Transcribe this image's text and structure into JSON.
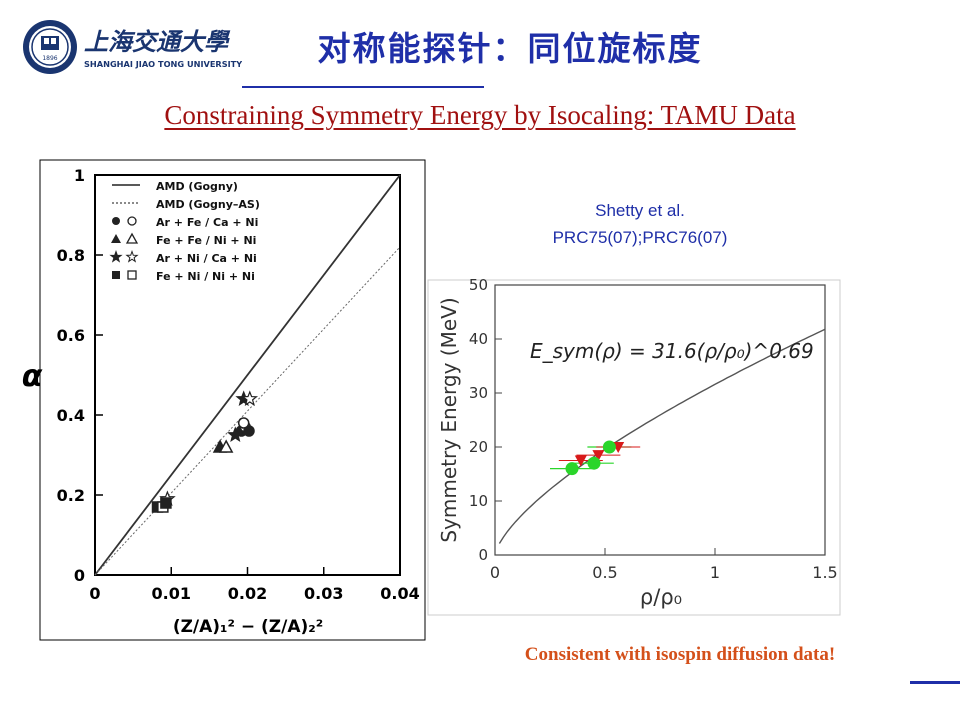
{
  "header": {
    "logo_chinese": "上海交通大學",
    "logo_english": "SHANGHAI JIAO TONG UNIVERSITY",
    "seal_year": "1896",
    "title": "对称能探针：同位旋标度"
  },
  "subtitle": "Constraining Symmetry Energy by Isocaling: TAMU Data",
  "citation": {
    "line1": "Shetty et al.",
    "line2": "PRC75(07);PRC76(07)"
  },
  "note": "Consistent with isospin diffusion data!",
  "chart_data": [
    {
      "type": "scatter",
      "xlabel": "(Z/A)₁² − (Z/A)₂²",
      "ylabel": "α",
      "xlim": [
        0,
        0.04
      ],
      "ylim": [
        0,
        1
      ],
      "xticks": [
        "0",
        "0.01",
        "0.02",
        "0.03",
        "0.04"
      ],
      "yticks": [
        "0",
        "0.2",
        "0.4",
        "0.6",
        "0.8",
        "1"
      ],
      "legend": [
        {
          "label": "AMD (Gogny)",
          "style": "solid-line"
        },
        {
          "label": "AMD (Gogny–AS)",
          "style": "dotted-line"
        },
        {
          "label": "Ar + Fe / Ca + Ni",
          "markers": "circle"
        },
        {
          "label": "Fe + Fe / Ni + Ni",
          "markers": "triangle"
        },
        {
          "label": "Ar + Ni / Ca + Ni",
          "markers": "star"
        },
        {
          "label": "Fe + Ni / Ni + Ni",
          "markers": "square"
        }
      ],
      "lines": [
        {
          "name": "AMD (Gogny)",
          "style": "solid",
          "x": [
            0,
            0.04
          ],
          "y": [
            0,
            1.0
          ]
        },
        {
          "name": "AMD (Gogny–AS)",
          "style": "dotted",
          "x": [
            0,
            0.04
          ],
          "y": [
            0,
            0.82
          ]
        }
      ],
      "series": [
        {
          "marker": "circle",
          "x": [
            0.0192,
            0.0197,
            0.0202,
            0.0195
          ],
          "y": [
            0.36,
            0.37,
            0.36,
            0.38
          ]
        },
        {
          "marker": "triangle",
          "x": [
            0.0164,
            0.0172
          ],
          "y": [
            0.32,
            0.32
          ]
        },
        {
          "marker": "star",
          "x": [
            0.0195,
            0.0203,
            0.0184,
            0.0095
          ],
          "y": [
            0.44,
            0.44,
            0.35,
            0.19
          ]
        },
        {
          "marker": "square",
          "x": [
            0.0082,
            0.0089,
            0.0093
          ],
          "y": [
            0.17,
            0.17,
            0.18
          ]
        }
      ]
    },
    {
      "type": "line",
      "xlabel": "ρ/ρ₀",
      "ylabel": "Symmetry Energy (MeV)",
      "annotation": "E_sym(ρ) = 31.6(ρ/ρ₀)^0.69",
      "xlim": [
        0,
        1.5
      ],
      "ylim": [
        0,
        50
      ],
      "xticks": [
        "0",
        "0.5",
        "1",
        "1.5"
      ],
      "yticks": [
        "0",
        "10",
        "20",
        "30",
        "40",
        "50"
      ],
      "fit": {
        "coefficient": 31.6,
        "exponent": 0.69,
        "x_range": [
          0.02,
          1.5
        ]
      },
      "points": [
        {
          "x": 0.35,
          "y": 16.0,
          "xerr": 0.1
        },
        {
          "x": 0.45,
          "y": 17.0,
          "xerr": 0.09
        },
        {
          "x": 0.52,
          "y": 20.0,
          "xerr": 0.1
        }
      ],
      "triangles": [
        {
          "x": 0.39,
          "y": 17.5
        },
        {
          "x": 0.47,
          "y": 18.5
        },
        {
          "x": 0.56,
          "y": 20.0
        }
      ],
      "colors": {
        "points": "#2ad52a",
        "triangles": "#d81a1a",
        "curve": "#555555"
      }
    }
  ]
}
